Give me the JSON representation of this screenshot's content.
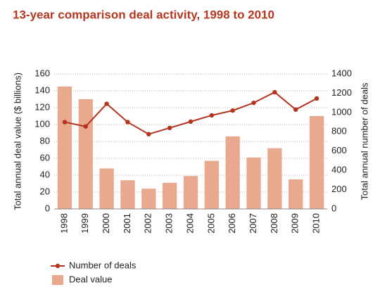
{
  "chart_data": {
    "type": "bar",
    "title": "13-year comparison deal activity, 1998 to 2010",
    "ylabel": "Total annual deal value ($ billions)",
    "y2label": "Total annual number of deals",
    "categories": [
      "1998",
      "1999",
      "2000",
      "2001",
      "2002",
      "2003",
      "2004",
      "2005",
      "2006",
      "2007",
      "2008",
      "2009",
      "2010"
    ],
    "series": [
      {
        "name": "Number of deals",
        "type": "line",
        "axis": "y2",
        "color": "#b5331f",
        "values": [
          900,
          855,
          1090,
          900,
          775,
          840,
          905,
          970,
          1020,
          1100,
          1210,
          1030,
          1145
        ]
      },
      {
        "name": "Deal value",
        "type": "bar",
        "color": "#e8a98e",
        "values": [
          145,
          130,
          48,
          34,
          24,
          31,
          39,
          57,
          86,
          61,
          72,
          35,
          110
        ]
      }
    ],
    "ylim": [
      0,
      160
    ],
    "yticks": [
      0,
      20,
      40,
      60,
      80,
      100,
      120,
      140,
      160
    ],
    "y2lim": [
      0,
      1400
    ],
    "y2ticks": [
      0,
      200,
      400,
      600,
      800,
      1000,
      1200,
      1400
    ],
    "grid": true
  }
}
